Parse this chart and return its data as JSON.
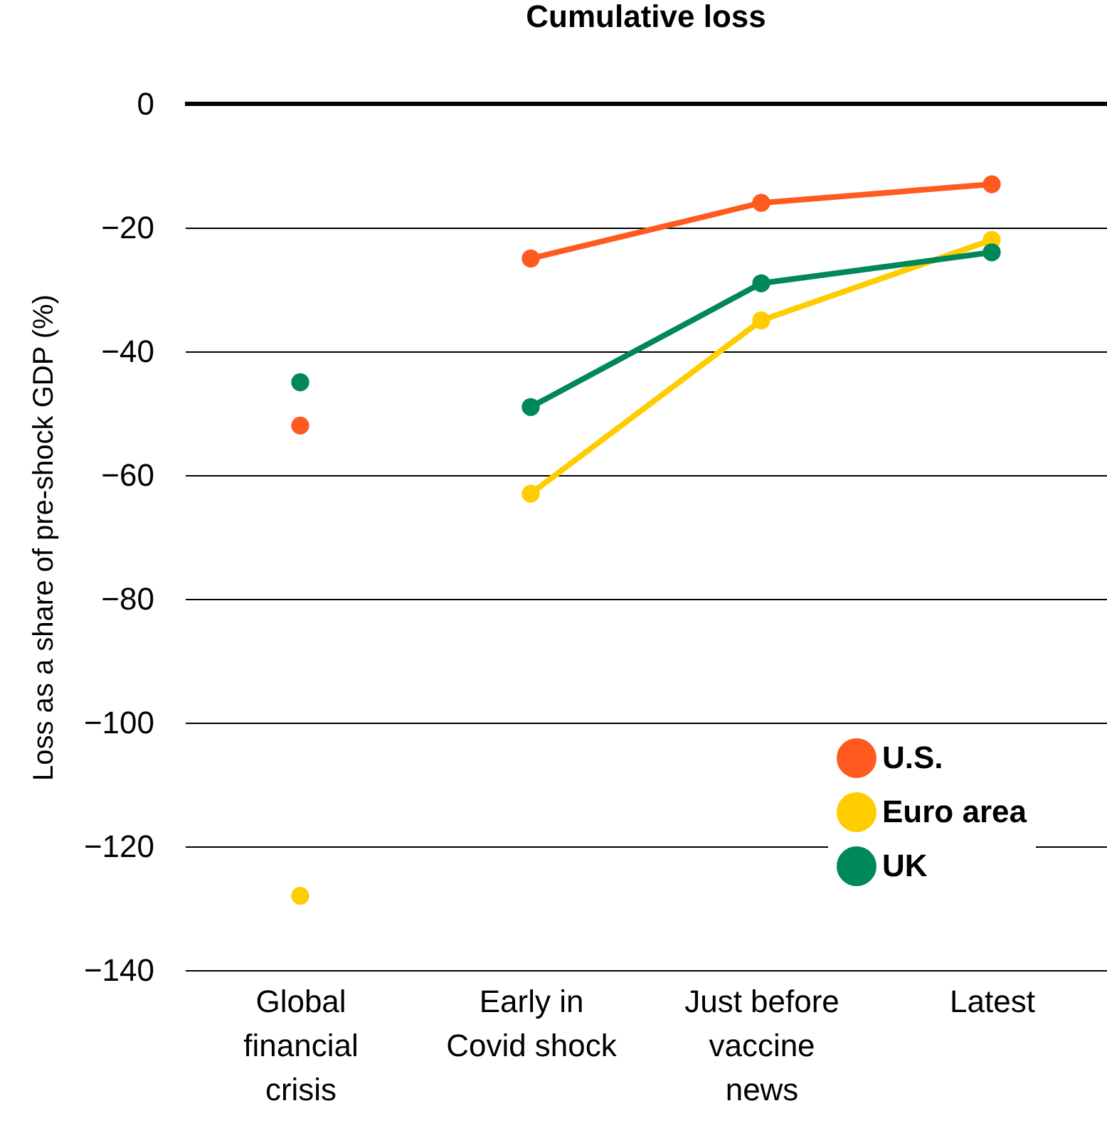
{
  "chart_data": {
    "type": "line",
    "title": "Cumulative loss",
    "ylabel": "Loss as a share of pre-shock GDP (%)",
    "categories": [
      "Global financial crisis",
      "Early in Covid shock",
      "Just before vaccine news",
      "Latest"
    ],
    "series": [
      {
        "name": "U.S.",
        "color": "#ff5a1f",
        "values": [
          null,
          -25,
          -16,
          -13
        ]
      },
      {
        "name": "Euro area",
        "color": "#ffcc00",
        "values": [
          null,
          -63,
          -35,
          -22
        ]
      },
      {
        "name": "UK",
        "color": "#00875a",
        "values": [
          null,
          -49,
          -29,
          -24
        ]
      },
      {
        "type": "scatter",
        "color": "#ff5a1f",
        "x": [
          "Global financial crisis"
        ],
        "values": [
          -52
        ]
      },
      {
        "type": "scatter",
        "color": "#ffcc00",
        "x": [
          "Global financial crisis"
        ],
        "values": [
          -128
        ]
      },
      {
        "type": "scatter",
        "color": "#00875a",
        "x": [
          "Global financial crisis"
        ],
        "values": [
          -45
        ]
      }
    ],
    "ylim": [
      -140,
      0
    ],
    "yticks": [
      -140,
      -120,
      -100,
      -80,
      -60,
      -40,
      -20,
      0
    ],
    "grid": "y",
    "legend": "bottom right",
    "marker": "circle",
    "line_style": "solid",
    "ref_lines": [
      {
        "axis": "y",
        "value": 0,
        "color": "#000000"
      }
    ]
  }
}
